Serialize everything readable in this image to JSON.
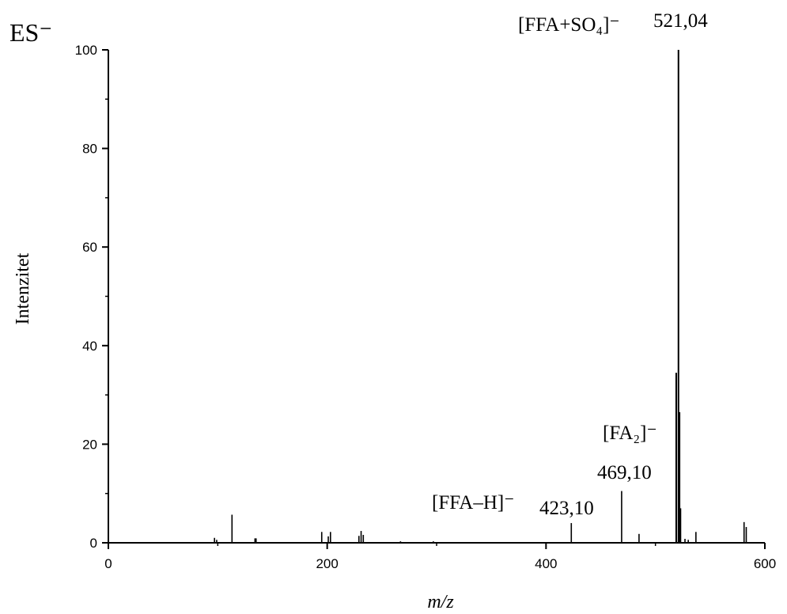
{
  "chart_data": {
    "type": "bar",
    "title": "",
    "ionization_mode": "ES⁻",
    "xlabel": "m/z",
    "ylabel": "Intenzitet",
    "xlim": [
      0,
      600
    ],
    "ylim": [
      0,
      100
    ],
    "xticks": [
      0,
      200,
      400,
      600
    ],
    "yticks": [
      0,
      20,
      40,
      60,
      80,
      100
    ],
    "grid": false,
    "legend": "none",
    "color": "#000000",
    "peaks": [
      {
        "mz": 97,
        "intensity": 1.0
      },
      {
        "mz": 99,
        "intensity": 0.6
      },
      {
        "mz": 113,
        "intensity": 5.7
      },
      {
        "mz": 134,
        "intensity": 0.9
      },
      {
        "mz": 135,
        "intensity": 0.9
      },
      {
        "mz": 195,
        "intensity": 2.2
      },
      {
        "mz": 201,
        "intensity": 1.3
      },
      {
        "mz": 203,
        "intensity": 2.2
      },
      {
        "mz": 229,
        "intensity": 1.4
      },
      {
        "mz": 231,
        "intensity": 2.4
      },
      {
        "mz": 233,
        "intensity": 1.6
      },
      {
        "mz": 267,
        "intensity": 0.3
      },
      {
        "mz": 297,
        "intensity": 0.3
      },
      {
        "mz": 423.1,
        "intensity": 4.0
      },
      {
        "mz": 469.1,
        "intensity": 10.5
      },
      {
        "mz": 485,
        "intensity": 1.8
      },
      {
        "mz": 519,
        "intensity": 34.5
      },
      {
        "mz": 521.04,
        "intensity": 100
      },
      {
        "mz": 522,
        "intensity": 26.5
      },
      {
        "mz": 523,
        "intensity": 7.0
      },
      {
        "mz": 527,
        "intensity": 0.8
      },
      {
        "mz": 530,
        "intensity": 0.6
      },
      {
        "mz": 537,
        "intensity": 2.2
      },
      {
        "mz": 581,
        "intensity": 4.2
      },
      {
        "mz": 583,
        "intensity": 3.2
      }
    ],
    "annotations": [
      {
        "ion": "[FFA+SO₄]⁻",
        "mz_label": "521,04",
        "mz": 521.04
      },
      {
        "ion": "[FA₂]⁻",
        "mz_label": "469,10",
        "mz": 469.1
      },
      {
        "ion": "[FFA–H]⁻",
        "mz_label": "423,10",
        "mz": 423.1
      }
    ]
  }
}
